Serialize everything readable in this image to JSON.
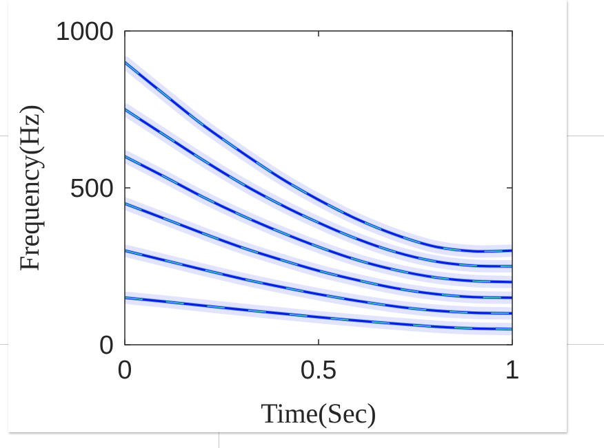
{
  "chart_data": {
    "type": "line",
    "xlabel": "Time(Sec)",
    "ylabel": "Frequency(Hz)",
    "xlim": [
      0,
      1
    ],
    "ylim": [
      0,
      1000
    ],
    "x_ticks": [
      "0",
      "0.5",
      "1"
    ],
    "y_ticks": [
      "0",
      "500",
      "1000"
    ],
    "grid": false,
    "colors": {
      "core": "#0a1fd6",
      "mid": "#3f8ff0",
      "highlight": "#4fe0c8",
      "halo": "#c9ccff"
    },
    "x": [
      0,
      0.1,
      0.2,
      0.3,
      0.4,
      0.5,
      0.6,
      0.7,
      0.8,
      0.9,
      1.0
    ],
    "series": [
      {
        "values": [
          900,
          800,
          702,
          615,
          533,
          462,
          400,
          350,
          313,
          298,
          300
        ]
      },
      {
        "values": [
          750,
          670,
          590,
          515,
          448,
          389,
          337,
          295,
          266,
          252,
          250
        ]
      },
      {
        "values": [
          600,
          537,
          472,
          413,
          360,
          312,
          270,
          238,
          215,
          203,
          200
        ]
      },
      {
        "values": [
          450,
          403,
          356,
          311,
          272,
          236,
          206,
          180,
          162,
          152,
          150
        ]
      },
      {
        "values": [
          300,
          270,
          240,
          211,
          185,
          161,
          140,
          122,
          109,
          102,
          100
        ]
      },
      {
        "values": [
          150,
          138,
          125,
          112,
          100,
          88,
          77,
          67,
          58,
          52,
          50
        ]
      }
    ]
  }
}
